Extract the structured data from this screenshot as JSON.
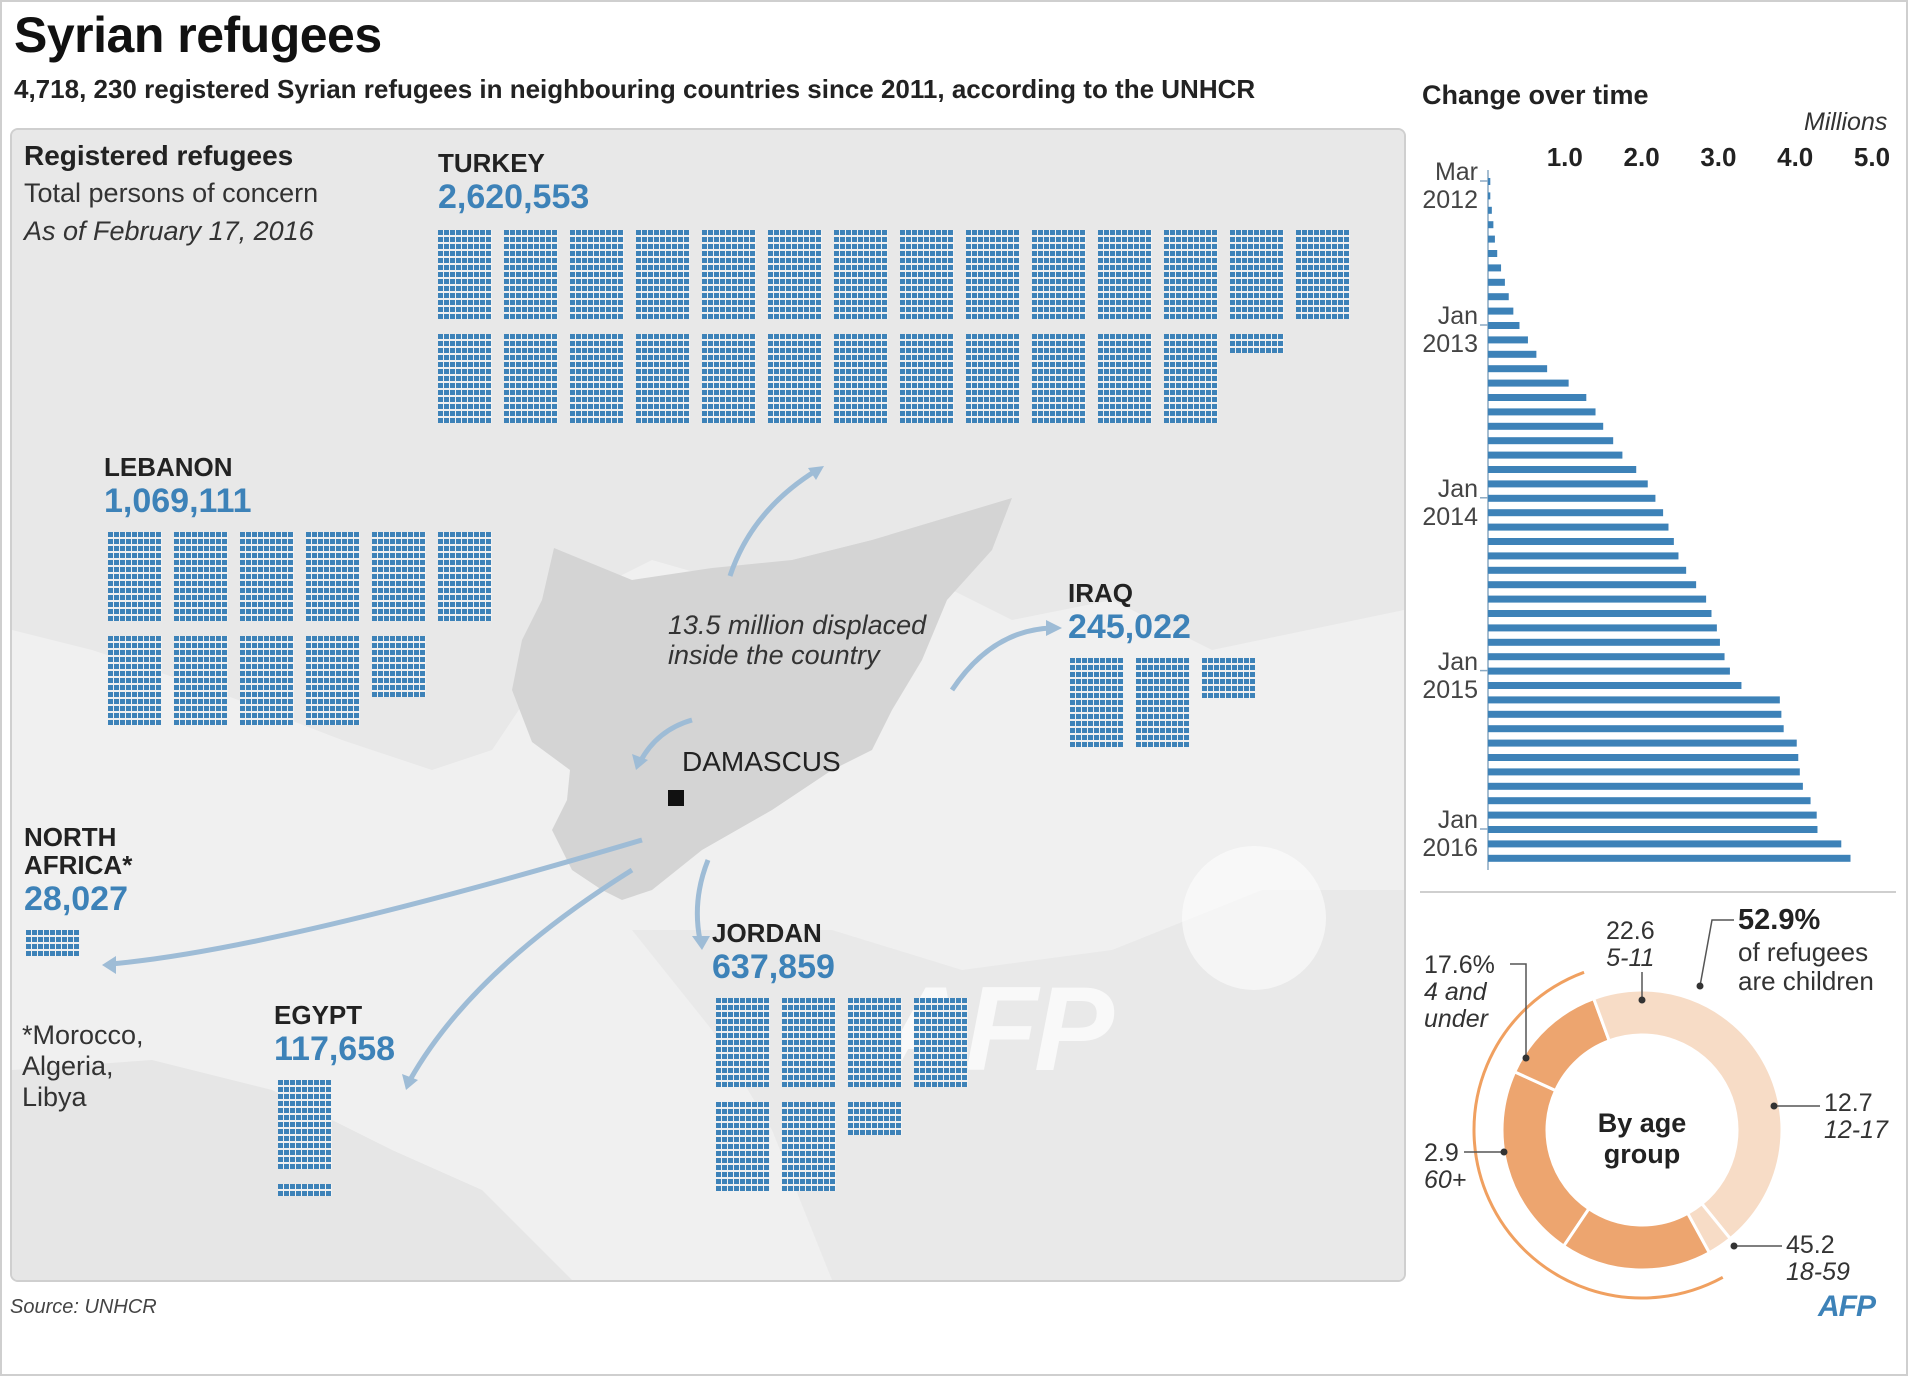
{
  "header": {
    "title": "Syrian refugees",
    "subtitle": "4,718, 230 registered Syrian refugees in neighbouring countries since 2011, according to the UNHCR"
  },
  "map": {
    "panel_title": "Registered refugees",
    "panel_subtitle": "Total persons of concern",
    "panel_date": "As of February 17, 2016",
    "displaced_line1": "13.5 million displaced",
    "displaced_line2": "inside the country",
    "capital": "DAMASCUS",
    "footnote_line1": "*Morocco,",
    "footnote_line2": "Algeria,",
    "footnote_line3": "Libya",
    "watermark": "AFP",
    "countries": [
      {
        "name": "TURKEY",
        "value": "2,620,553",
        "count": 2620553
      },
      {
        "name": "LEBANON",
        "value": "1,069,111",
        "count": 1069111
      },
      {
        "name": "IRAQ",
        "value": "245,022",
        "count": 245022
      },
      {
        "name": "JORDAN",
        "value": "637,859",
        "count": 637859
      },
      {
        "name": "EGYPT",
        "value": "117,658",
        "count": 117658
      },
      {
        "name": "NORTH",
        "name2": "AFRICA*",
        "value": "28,027",
        "count": 28027
      }
    ]
  },
  "footer": {
    "source": "Source: UNHCR",
    "logo": "AFP"
  },
  "colors": {
    "accent": "#3d82b8",
    "map_bg": "#f0f0f0",
    "syria": "#d4d4d4",
    "age_dark": "#eda56f",
    "age_light": "#f7dcc6",
    "arc": "#f0a060"
  },
  "chart_data": [
    {
      "type": "bar",
      "orientation": "horizontal",
      "title": "Change over time",
      "units": "Millions",
      "xticks": [
        "1.0",
        "2.0",
        "3.0",
        "4.0",
        "5.0"
      ],
      "xlim": [
        0,
        5.0
      ],
      "time_labels": [
        {
          "line1": "Mar",
          "line2": "2012",
          "index": 0
        },
        {
          "line1": "Jan",
          "line2": "2013",
          "index": 10
        },
        {
          "line1": "Jan",
          "line2": "2014",
          "index": 22
        },
        {
          "line1": "Jan",
          "line2": "2015",
          "index": 34
        },
        {
          "line1": "Jan",
          "line2": "2016",
          "index": 45
        }
      ],
      "values": [
        0.03,
        0.03,
        0.05,
        0.07,
        0.09,
        0.12,
        0.17,
        0.22,
        0.27,
        0.33,
        0.41,
        0.52,
        0.63,
        0.77,
        1.05,
        1.28,
        1.4,
        1.5,
        1.63,
        1.75,
        1.93,
        2.08,
        2.18,
        2.28,
        2.35,
        2.42,
        2.48,
        2.58,
        2.71,
        2.84,
        2.91,
        2.98,
        3.02,
        3.08,
        3.15,
        3.3,
        3.8,
        3.82,
        3.85,
        4.02,
        4.04,
        4.06,
        4.1,
        4.2,
        4.28,
        4.29,
        4.6,
        4.72
      ],
      "grid": false
    },
    {
      "type": "pie",
      "style": "donut",
      "title": "By age group",
      "unit": "%",
      "slices": [
        {
          "label": "5-11",
          "value": 22.6,
          "value_text": "22.6"
        },
        {
          "label": "12-17",
          "value": 12.7,
          "value_text": "12.7"
        },
        {
          "label": "18-59",
          "value": 45.2,
          "value_text": "45.2"
        },
        {
          "label": "60+",
          "value": 2.9,
          "value_text": "2.9"
        },
        {
          "label": "4 and under",
          "value": 17.6,
          "value_text": "17.6%"
        }
      ],
      "annotation_pct": "52.9%",
      "annotation_line1": "of refugees",
      "annotation_line2": "are children"
    }
  ]
}
